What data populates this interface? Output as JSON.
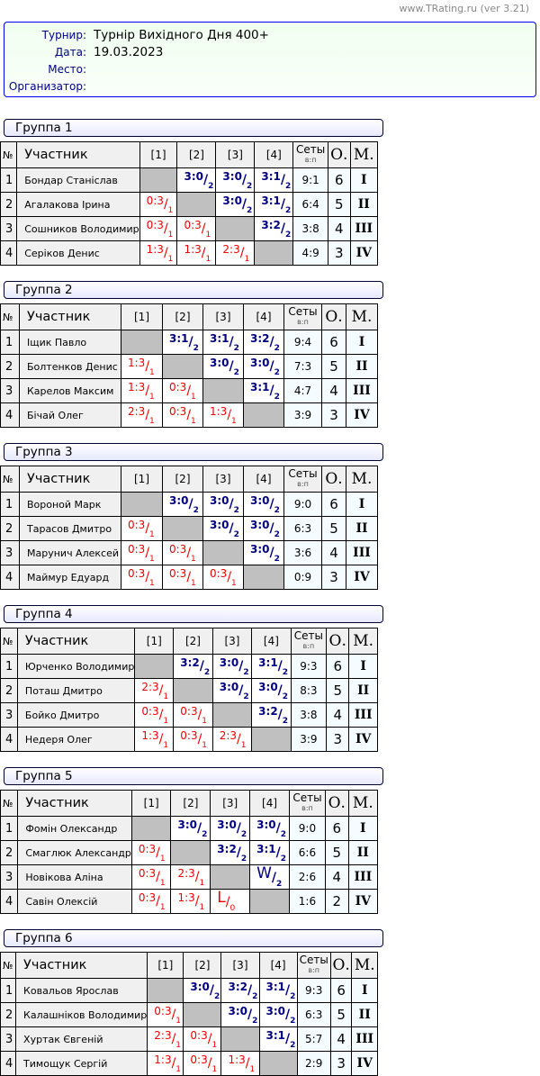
{
  "watermark": "www.TRating.ru (ver 3.21)",
  "info": [
    {
      "label": "Турнир:",
      "value": "Турнір Вихідного Дня 400+"
    },
    {
      "label": "Дата:",
      "value": "19.03.2023"
    },
    {
      "label": "Место:",
      "value": ""
    },
    {
      "label": "Организатор:",
      "value": ""
    }
  ],
  "headers": {
    "num": "№",
    "player": "Участник",
    "cols": [
      "[1]",
      "[2]",
      "[3]",
      "[4]"
    ],
    "sets": "Сеты",
    "sets_sub": "в:п",
    "points": "О.",
    "place": "М."
  },
  "colors": {
    "win": "#000080",
    "loss": "#ee0000",
    "self": "#c0c0c0"
  },
  "groups": [
    {
      "title": "Группа 1",
      "rows": [
        {
          "n": "1",
          "name": "Бондар Станіслав",
          "res": [
            null,
            {
              "s": "3:0",
              "p": "2"
            },
            {
              "s": "3:0",
              "p": "2"
            },
            {
              "s": "3:1",
              "p": "2"
            }
          ],
          "sets": "9:1",
          "pts": "6",
          "place": "I"
        },
        {
          "n": "2",
          "name": "Агалакова Ірина",
          "res": [
            {
              "s": "0:3",
              "p": "1"
            },
            null,
            {
              "s": "3:0",
              "p": "2"
            },
            {
              "s": "3:1",
              "p": "2"
            }
          ],
          "sets": "6:4",
          "pts": "5",
          "place": "II"
        },
        {
          "n": "3",
          "name": "Сошников Володимир",
          "res": [
            {
              "s": "0:3",
              "p": "1"
            },
            {
              "s": "0:3",
              "p": "1"
            },
            null,
            {
              "s": "3:2",
              "p": "2"
            }
          ],
          "sets": "3:8",
          "pts": "4",
          "place": "III"
        },
        {
          "n": "4",
          "name": "Серіков Денис",
          "res": [
            {
              "s": "1:3",
              "p": "1"
            },
            {
              "s": "1:3",
              "p": "1"
            },
            {
              "s": "2:3",
              "p": "1"
            },
            null
          ],
          "sets": "4:9",
          "pts": "3",
          "place": "IV"
        }
      ]
    },
    {
      "title": "Группа 2",
      "rows": [
        {
          "n": "1",
          "name": "Іщик Павло",
          "res": [
            null,
            {
              "s": "3:1",
              "p": "2"
            },
            {
              "s": "3:1",
              "p": "2"
            },
            {
              "s": "3:2",
              "p": "2"
            }
          ],
          "sets": "9:4",
          "pts": "6",
          "place": "I"
        },
        {
          "n": "2",
          "name": "Болтенков Денис",
          "res": [
            {
              "s": "1:3",
              "p": "1"
            },
            null,
            {
              "s": "3:0",
              "p": "2"
            },
            {
              "s": "3:0",
              "p": "2"
            }
          ],
          "sets": "7:3",
          "pts": "5",
          "place": "II"
        },
        {
          "n": "3",
          "name": "Карелов Максим",
          "res": [
            {
              "s": "1:3",
              "p": "1"
            },
            {
              "s": "0:3",
              "p": "1"
            },
            null,
            {
              "s": "3:1",
              "p": "2"
            }
          ],
          "sets": "4:7",
          "pts": "4",
          "place": "III"
        },
        {
          "n": "4",
          "name": "Бічай Олег",
          "res": [
            {
              "s": "2:3",
              "p": "1"
            },
            {
              "s": "0:3",
              "p": "1"
            },
            {
              "s": "1:3",
              "p": "1"
            },
            null
          ],
          "sets": "3:9",
          "pts": "3",
          "place": "IV"
        }
      ]
    },
    {
      "title": "Группа 3",
      "rows": [
        {
          "n": "1",
          "name": "Вороной Марк",
          "res": [
            null,
            {
              "s": "3:0",
              "p": "2"
            },
            {
              "s": "3:0",
              "p": "2"
            },
            {
              "s": "3:0",
              "p": "2"
            }
          ],
          "sets": "9:0",
          "pts": "6",
          "place": "I"
        },
        {
          "n": "2",
          "name": "Тарасов Дмитро",
          "res": [
            {
              "s": "0:3",
              "p": "1"
            },
            null,
            {
              "s": "3:0",
              "p": "2"
            },
            {
              "s": "3:0",
              "p": "2"
            }
          ],
          "sets": "6:3",
          "pts": "5",
          "place": "II"
        },
        {
          "n": "3",
          "name": "Марунич Алексей",
          "res": [
            {
              "s": "0:3",
              "p": "1"
            },
            {
              "s": "0:3",
              "p": "1"
            },
            null,
            {
              "s": "3:0",
              "p": "2"
            }
          ],
          "sets": "3:6",
          "pts": "4",
          "place": "III"
        },
        {
          "n": "4",
          "name": "Маймур Едуард",
          "res": [
            {
              "s": "0:3",
              "p": "1"
            },
            {
              "s": "0:3",
              "p": "1"
            },
            {
              "s": "0:3",
              "p": "1"
            },
            null
          ],
          "sets": "0:9",
          "pts": "3",
          "place": "IV"
        }
      ]
    },
    {
      "title": "Группа 4",
      "rows": [
        {
          "n": "1",
          "name": "Юрченко Володимир",
          "res": [
            null,
            {
              "s": "3:2",
              "p": "2"
            },
            {
              "s": "3:0",
              "p": "2"
            },
            {
              "s": "3:1",
              "p": "2"
            }
          ],
          "sets": "9:3",
          "pts": "6",
          "place": "I"
        },
        {
          "n": "2",
          "name": "Поташ Дмитро",
          "res": [
            {
              "s": "2:3",
              "p": "1"
            },
            null,
            {
              "s": "3:0",
              "p": "2"
            },
            {
              "s": "3:0",
              "p": "2"
            }
          ],
          "sets": "8:3",
          "pts": "5",
          "place": "II"
        },
        {
          "n": "3",
          "name": "Бойко Дмитро",
          "res": [
            {
              "s": "0:3",
              "p": "1"
            },
            {
              "s": "0:3",
              "p": "1"
            },
            null,
            {
              "s": "3:2",
              "p": "2"
            }
          ],
          "sets": "3:8",
          "pts": "4",
          "place": "III"
        },
        {
          "n": "4",
          "name": "Недеря Олег",
          "res": [
            {
              "s": "1:3",
              "p": "1"
            },
            {
              "s": "0:3",
              "p": "1"
            },
            {
              "s": "2:3",
              "p": "1"
            },
            null
          ],
          "sets": "3:9",
          "pts": "3",
          "place": "IV"
        }
      ]
    },
    {
      "title": "Группа 5",
      "rows": [
        {
          "n": "1",
          "name": "Фомін Олександр",
          "res": [
            null,
            {
              "s": "3:0",
              "p": "2"
            },
            {
              "s": "3:0",
              "p": "2"
            },
            {
              "s": "3:0",
              "p": "2"
            }
          ],
          "sets": "9:0",
          "pts": "6",
          "place": "I"
        },
        {
          "n": "2",
          "name": "Смаглюк Александр",
          "res": [
            {
              "s": "0:3",
              "p": "1"
            },
            null,
            {
              "s": "3:2",
              "p": "2"
            },
            {
              "s": "3:1",
              "p": "2"
            }
          ],
          "sets": "6:6",
          "pts": "5",
          "place": "II"
        },
        {
          "n": "3",
          "name": "Новікова Аліна",
          "res": [
            {
              "s": "0:3",
              "p": "1"
            },
            {
              "s": "2:3",
              "p": "1"
            },
            null,
            {
              "s": "W",
              "p": "2"
            }
          ],
          "sets": "2:6",
          "pts": "4",
          "place": "III"
        },
        {
          "n": "4",
          "name": "Савін Олексій",
          "res": [
            {
              "s": "0:3",
              "p": "1"
            },
            {
              "s": "1:3",
              "p": "1"
            },
            {
              "s": "L",
              "p": "0"
            },
            null
          ],
          "sets": "1:6",
          "pts": "2",
          "place": "IV"
        }
      ]
    },
    {
      "title": "Группа 6",
      "rows": [
        {
          "n": "1",
          "name": "Ковальов Ярослав",
          "res": [
            null,
            {
              "s": "3:0",
              "p": "2"
            },
            {
              "s": "3:2",
              "p": "2"
            },
            {
              "s": "3:1",
              "p": "2"
            }
          ],
          "sets": "9:3",
          "pts": "6",
          "place": "I"
        },
        {
          "n": "2",
          "name": "Калашніков Володимир",
          "res": [
            {
              "s": "0:3",
              "p": "1"
            },
            null,
            {
              "s": "3:0",
              "p": "2"
            },
            {
              "s": "3:0",
              "p": "2"
            }
          ],
          "sets": "6:3",
          "pts": "5",
          "place": "II"
        },
        {
          "n": "3",
          "name": "Хуртак Євгеній",
          "res": [
            {
              "s": "2:3",
              "p": "1"
            },
            {
              "s": "0:3",
              "p": "1"
            },
            null,
            {
              "s": "3:1",
              "p": "2"
            }
          ],
          "sets": "5:7",
          "pts": "4",
          "place": "III"
        },
        {
          "n": "4",
          "name": "Тимощук Сергій",
          "res": [
            {
              "s": "1:3",
              "p": "1"
            },
            {
              "s": "0:3",
              "p": "1"
            },
            {
              "s": "1:3",
              "p": "1"
            },
            null
          ],
          "sets": "2:9",
          "pts": "3",
          "place": "IV"
        }
      ]
    }
  ]
}
